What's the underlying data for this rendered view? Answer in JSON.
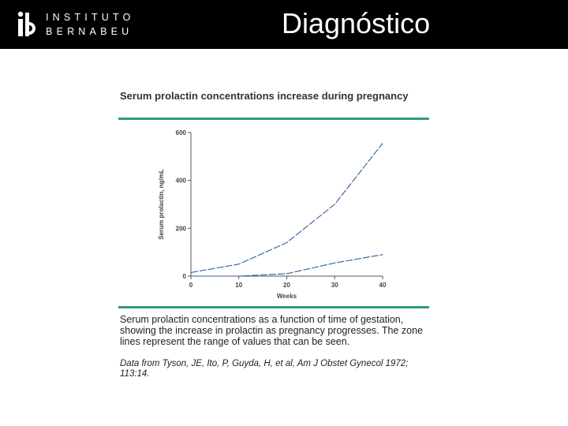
{
  "header": {
    "logo": {
      "line1": "INSTITUTO",
      "line2": "BERNABEU",
      "mark": "ib-logo-icon"
    },
    "title": "Diagnóstico",
    "background": "#000000"
  },
  "figure": {
    "title": "Serum prolactin concentrations increase during pregnancy",
    "caption": "Serum prolactin concentrations as a function of time of gestation, showing the increase in prolactin as pregnancy progresses. The zone lines represent the range of values that can be seen.",
    "source": "Data from Tyson, JE, Ito, P, Guyda, H, et al, Am J Obstet Gynecol 1972; 113:14.",
    "accent_color": "#2e9b7b"
  },
  "chart_data": {
    "type": "line",
    "title": "Serum prolactin concentrations increase during pregnancy",
    "xlabel": "Weeks",
    "ylabel": "Serum prolactin, ng/mL",
    "xlim": [
      0,
      40
    ],
    "ylim": [
      0,
      600
    ],
    "xticks": [
      "0",
      "10",
      "20",
      "30",
      "40"
    ],
    "yticks": [
      "0",
      "200",
      "400",
      "600"
    ],
    "grid": false,
    "line_color": "#2f5d9e",
    "series": [
      {
        "x": [
          0,
          10,
          20,
          30,
          40
        ],
        "values": [
          15,
          50,
          140,
          300,
          555
        ]
      },
      {
        "x": [
          0,
          10,
          20,
          30,
          40
        ],
        "values": [
          0,
          0,
          10,
          55,
          90
        ]
      }
    ]
  }
}
